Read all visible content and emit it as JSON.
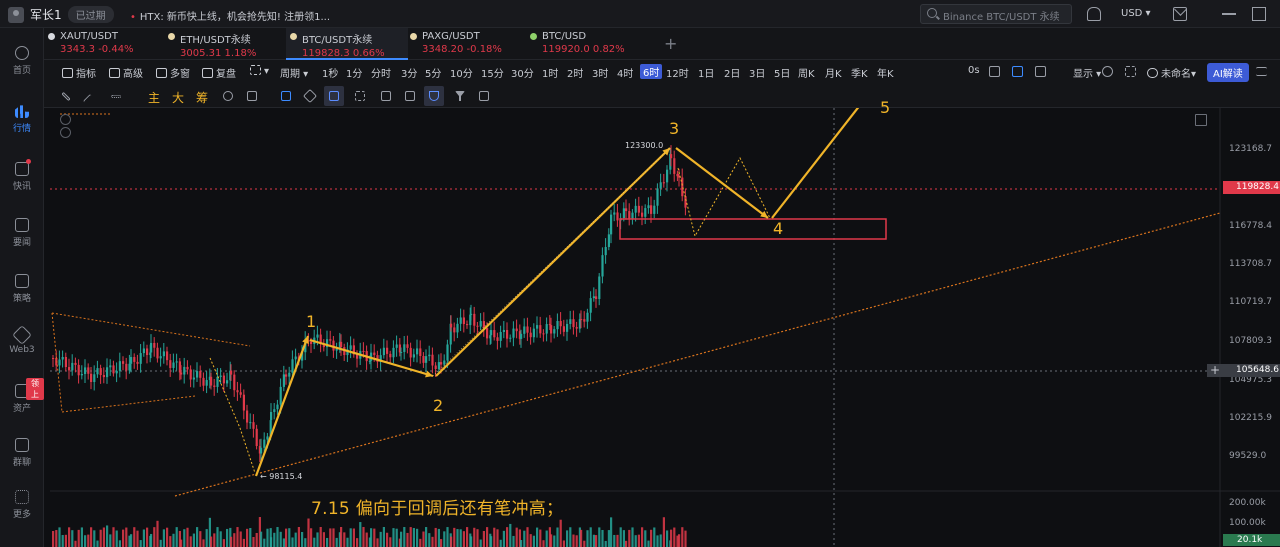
{
  "topbar": {
    "username": "军长1",
    "status_badge": "已过期",
    "ticker": "HTX: 新币快上线，机会抢先知! 注册领1...",
    "search_placeholder": "Binance BTC/USDT 永续",
    "currency": "USD"
  },
  "nav": {
    "items": [
      {
        "label": "首页"
      },
      {
        "label": "行情"
      },
      {
        "label": "快讯"
      },
      {
        "label": "要闻"
      },
      {
        "label": "策略"
      },
      {
        "label": "Web3"
      },
      {
        "label": "资产",
        "tag": "领上"
      },
      {
        "label": "群聊"
      },
      {
        "label": "更多"
      }
    ]
  },
  "symbols": [
    {
      "name": "XAUT/USDT",
      "price": "3343.3",
      "change": "-0.44%",
      "icon_color": "#d7d9de"
    },
    {
      "name": "ETH/USDT永续",
      "price": "3005.31",
      "change": "1.18%",
      "icon_color": "#e8d7a8"
    },
    {
      "name": "BTC/USDT永续",
      "price": "119828.3",
      "change": "0.66%",
      "icon_color": "#e8d7a8"
    },
    {
      "name": "PAXG/USDT",
      "price": "3348.20",
      "change": "-0.18%",
      "icon_color": "#e8d7a8"
    },
    {
      "name": "BTC/USD",
      "price": "119920.0",
      "change": "0.82%",
      "icon_color": "#8fd16a"
    }
  ],
  "toolbar": {
    "indicators": "指标",
    "advanced": "高级",
    "multi_window": "多窗",
    "replay": "复盘",
    "period": "周期",
    "intervals": [
      "1秒",
      "1分",
      "分时",
      "3分",
      "5分",
      "10分",
      "15分",
      "30分",
      "1时",
      "2时",
      "3时",
      "4时",
      "6时",
      "12时",
      "1日",
      "2日",
      "3日",
      "5日",
      "周K",
      "月K",
      "季K",
      "年K"
    ],
    "active_interval": "6时",
    "seconds_label": "0s",
    "display": "显示",
    "unnamed": "未命名",
    "ai_button": "AI解读"
  },
  "drawing_tools": {
    "cn_tools": [
      "主",
      "大",
      "筹"
    ]
  },
  "chart": {
    "price_axis": [
      "123168.7",
      "116778.4",
      "113708.7",
      "110719.7",
      "107809.3",
      "104975.3",
      "102215.9",
      "99529.0"
    ],
    "current_price_tag": "119828.4",
    "crosshair_price_tag": "105648.6",
    "volume_axis": [
      "200.00k",
      "100.00k"
    ],
    "volume_tag": "20.1k",
    "high_label": "123300.0",
    "low_label": "98115.4",
    "wave_labels": [
      "1",
      "2",
      "3",
      "4",
      "5"
    ],
    "annotation": "7.15 偏向于回调后还有笔冲高；",
    "colors": {
      "up": "#26a69a",
      "down": "#e0394a",
      "wave": "#f0b429",
      "trendline": "#d9731d",
      "box": "#e0394a"
    }
  }
}
